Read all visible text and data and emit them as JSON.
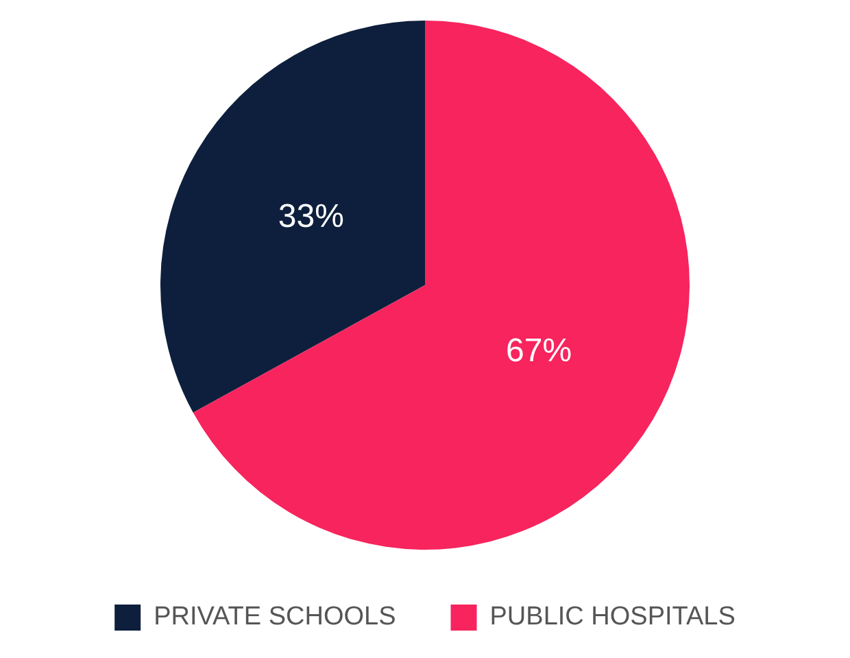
{
  "chart_data": {
    "type": "pie",
    "categories": [
      "PRIVATE SCHOOLS",
      "PUBLIC HOSPITALS"
    ],
    "values": [
      33,
      67
    ],
    "colors": [
      "#0d1f3c",
      "#f7245e"
    ],
    "value_labels": [
      "33%",
      "67%"
    ],
    "legend": "bottom"
  }
}
